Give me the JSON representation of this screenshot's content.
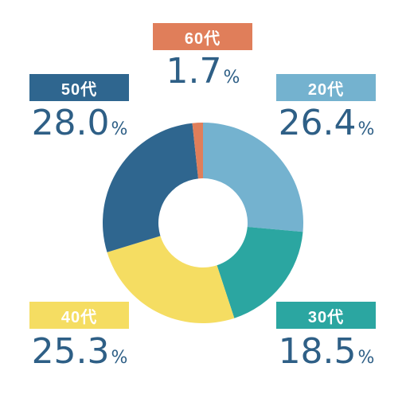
{
  "chart_data": {
    "type": "pie",
    "donut": true,
    "categories": [
      "20代",
      "30代",
      "40代",
      "50代",
      "60代"
    ],
    "values": [
      26.4,
      18.5,
      25.3,
      28.0,
      1.7
    ],
    "value_labels": [
      "26.4",
      "18.5",
      "25.3",
      "28.0",
      "1.7"
    ],
    "unit": "%",
    "colors": [
      "#74b2cf",
      "#2ba6a1",
      "#f5dd62",
      "#2f668f",
      "#e07e5a"
    ],
    "start_angle_deg": 0,
    "direction": "clockwise",
    "legend": "labels around the chart"
  }
}
